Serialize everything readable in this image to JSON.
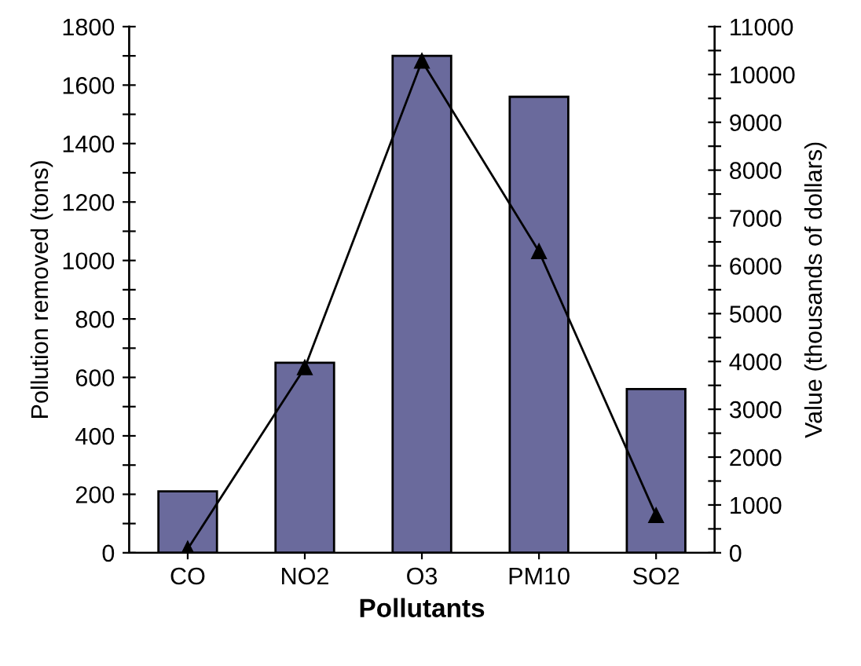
{
  "chart_data": {
    "type": "bar",
    "xlabel": "Pollutants",
    "ylabel": "Pollution removed (tons)",
    "y2label": "Value (thousands of dollars)",
    "categories": [
      "CO",
      "NO2",
      "O3",
      "PM10",
      "SO2"
    ],
    "series": [
      {
        "color": "#6a6a9c",
        "values": [
          210,
          650,
          1700,
          1560,
          560
        ]
      },
      {
        "type": "line",
        "axis": "y2",
        "color": "#000000",
        "marker": "triangle",
        "line_style": "solid",
        "values": [
          80,
          3870,
          10280,
          6300,
          780
        ]
      }
    ],
    "ylim": [
      0,
      1800
    ],
    "yticks": [
      0,
      {
        "value": 100,
        "label": null
      },
      200,
      {
        "value": 300,
        "label": null
      },
      400,
      {
        "value": 500,
        "label": null
      },
      600,
      {
        "value": 700,
        "label": null
      },
      800,
      {
        "value": 900,
        "label": null
      },
      1000,
      {
        "value": 1100,
        "label": null
      },
      1200,
      {
        "value": 1300,
        "label": null
      },
      1400,
      {
        "value": 1500,
        "label": null
      },
      1600,
      {
        "value": 1700,
        "label": null
      },
      1800
    ],
    "y2lim": [
      0,
      11000
    ],
    "y2ticks": [
      0,
      {
        "value": 500,
        "label": null
      },
      1000,
      {
        "value": 1500,
        "label": null
      },
      2000,
      {
        "value": 2500,
        "label": null
      },
      3000,
      {
        "value": 3500,
        "label": null
      },
      4000,
      {
        "value": 4500,
        "label": null
      },
      5000,
      {
        "value": 5500,
        "label": null
      },
      6000,
      {
        "value": 6500,
        "label": null
      },
      7000,
      {
        "value": 7500,
        "label": null
      },
      8000,
      {
        "value": 8500,
        "label": null
      },
      9000,
      {
        "value": 9500,
        "label": null
      },
      10000,
      {
        "value": 10500,
        "label": null
      },
      11000
    ],
    "grid": false,
    "legend": false
  }
}
